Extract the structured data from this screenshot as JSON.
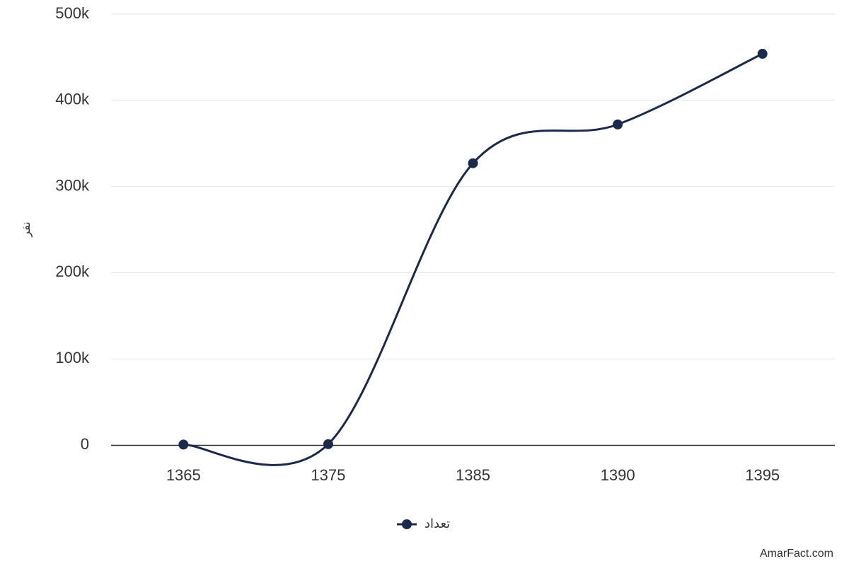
{
  "chart_data": {
    "type": "line",
    "smooth": true,
    "categories": [
      "1365",
      "1375",
      "1385",
      "1390",
      "1395"
    ],
    "series": [
      {
        "name": "تعداد",
        "color": "#1b2a4b",
        "values": [
          500,
          1000,
          327000,
          372000,
          454000
        ]
      }
    ],
    "y_axis_label": "نفر",
    "ylim": [
      0,
      500000
    ],
    "yticks": [
      0,
      {
        "value": 100000,
        "label": "100k"
      },
      {
        "value": 200000,
        "label": "200k"
      },
      {
        "value": 300000,
        "label": "300k"
      },
      {
        "value": 400000,
        "label": "400k"
      },
      {
        "value": 500000,
        "label": "500k"
      }
    ],
    "grid": true,
    "legend": "bottom",
    "credits": "AmarFact.com"
  }
}
